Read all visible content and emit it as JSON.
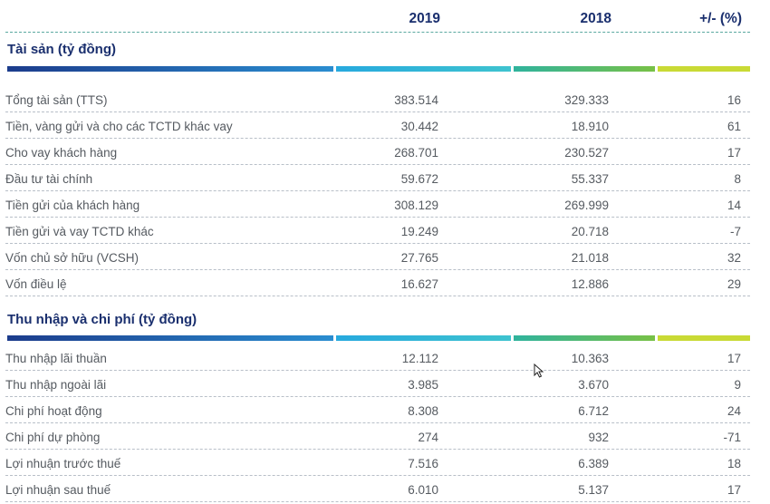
{
  "header": {
    "col_2019": "2019",
    "col_2018": "2018",
    "col_change": "+/- (%)"
  },
  "assets": {
    "title": "Tài sản (tỷ đồng)",
    "rows": [
      {
        "label": "Tổng tài sản (TTS)",
        "v2019": "383.514",
        "v2018": "329.333",
        "change": "16"
      },
      {
        "label": "Tiền, vàng gửi và cho các TCTD khác vay",
        "v2019": "30.442",
        "v2018": "18.910",
        "change": "61"
      },
      {
        "label": "Cho vay khách hàng",
        "v2019": "268.701",
        "v2018": "230.527",
        "change": "17"
      },
      {
        "label": "Đầu tư tài chính",
        "v2019": "59.672",
        "v2018": "55.337",
        "change": "8"
      },
      {
        "label": "Tiền gửi của khách hàng",
        "v2019": "308.129",
        "v2018": "269.999",
        "change": "14"
      },
      {
        "label": "Tiền gửi và vay TCTD khác",
        "v2019": "19.249",
        "v2018": "20.718",
        "change": "-7"
      },
      {
        "label": "Vốn chủ sở hữu (VCSH)",
        "v2019": "27.765",
        "v2018": "21.018",
        "change": "32"
      },
      {
        "label": "Vốn điều lệ",
        "v2019": "16.627",
        "v2018": "12.886",
        "change": "29"
      }
    ]
  },
  "income": {
    "title": "Thu nhập và chi phí (tỷ đồng)",
    "rows": [
      {
        "label": "Thu nhập lãi thuần",
        "v2019": "12.112",
        "v2018": "10.363",
        "change": "17"
      },
      {
        "label": "Thu nhập ngoài lãi",
        "v2019": "3.985",
        "v2018": "3.670",
        "change": "9"
      },
      {
        "label": "Chi phí hoạt động",
        "v2019": "8.308",
        "v2018": "6.712",
        "change": "24"
      },
      {
        "label": "Chi phí dự phòng",
        "v2019": "274",
        "v2018": "932",
        "change": "-71"
      },
      {
        "label": "Lợi nhuận trước thuế",
        "v2019": "7.516",
        "v2018": "6.389",
        "change": "18"
      },
      {
        "label": "Lợi nhuận sau thuế",
        "v2019": "6.010",
        "v2018": "5.137",
        "change": "17"
      }
    ]
  },
  "icons": {
    "cursor": "mouse-pointer-icon"
  }
}
